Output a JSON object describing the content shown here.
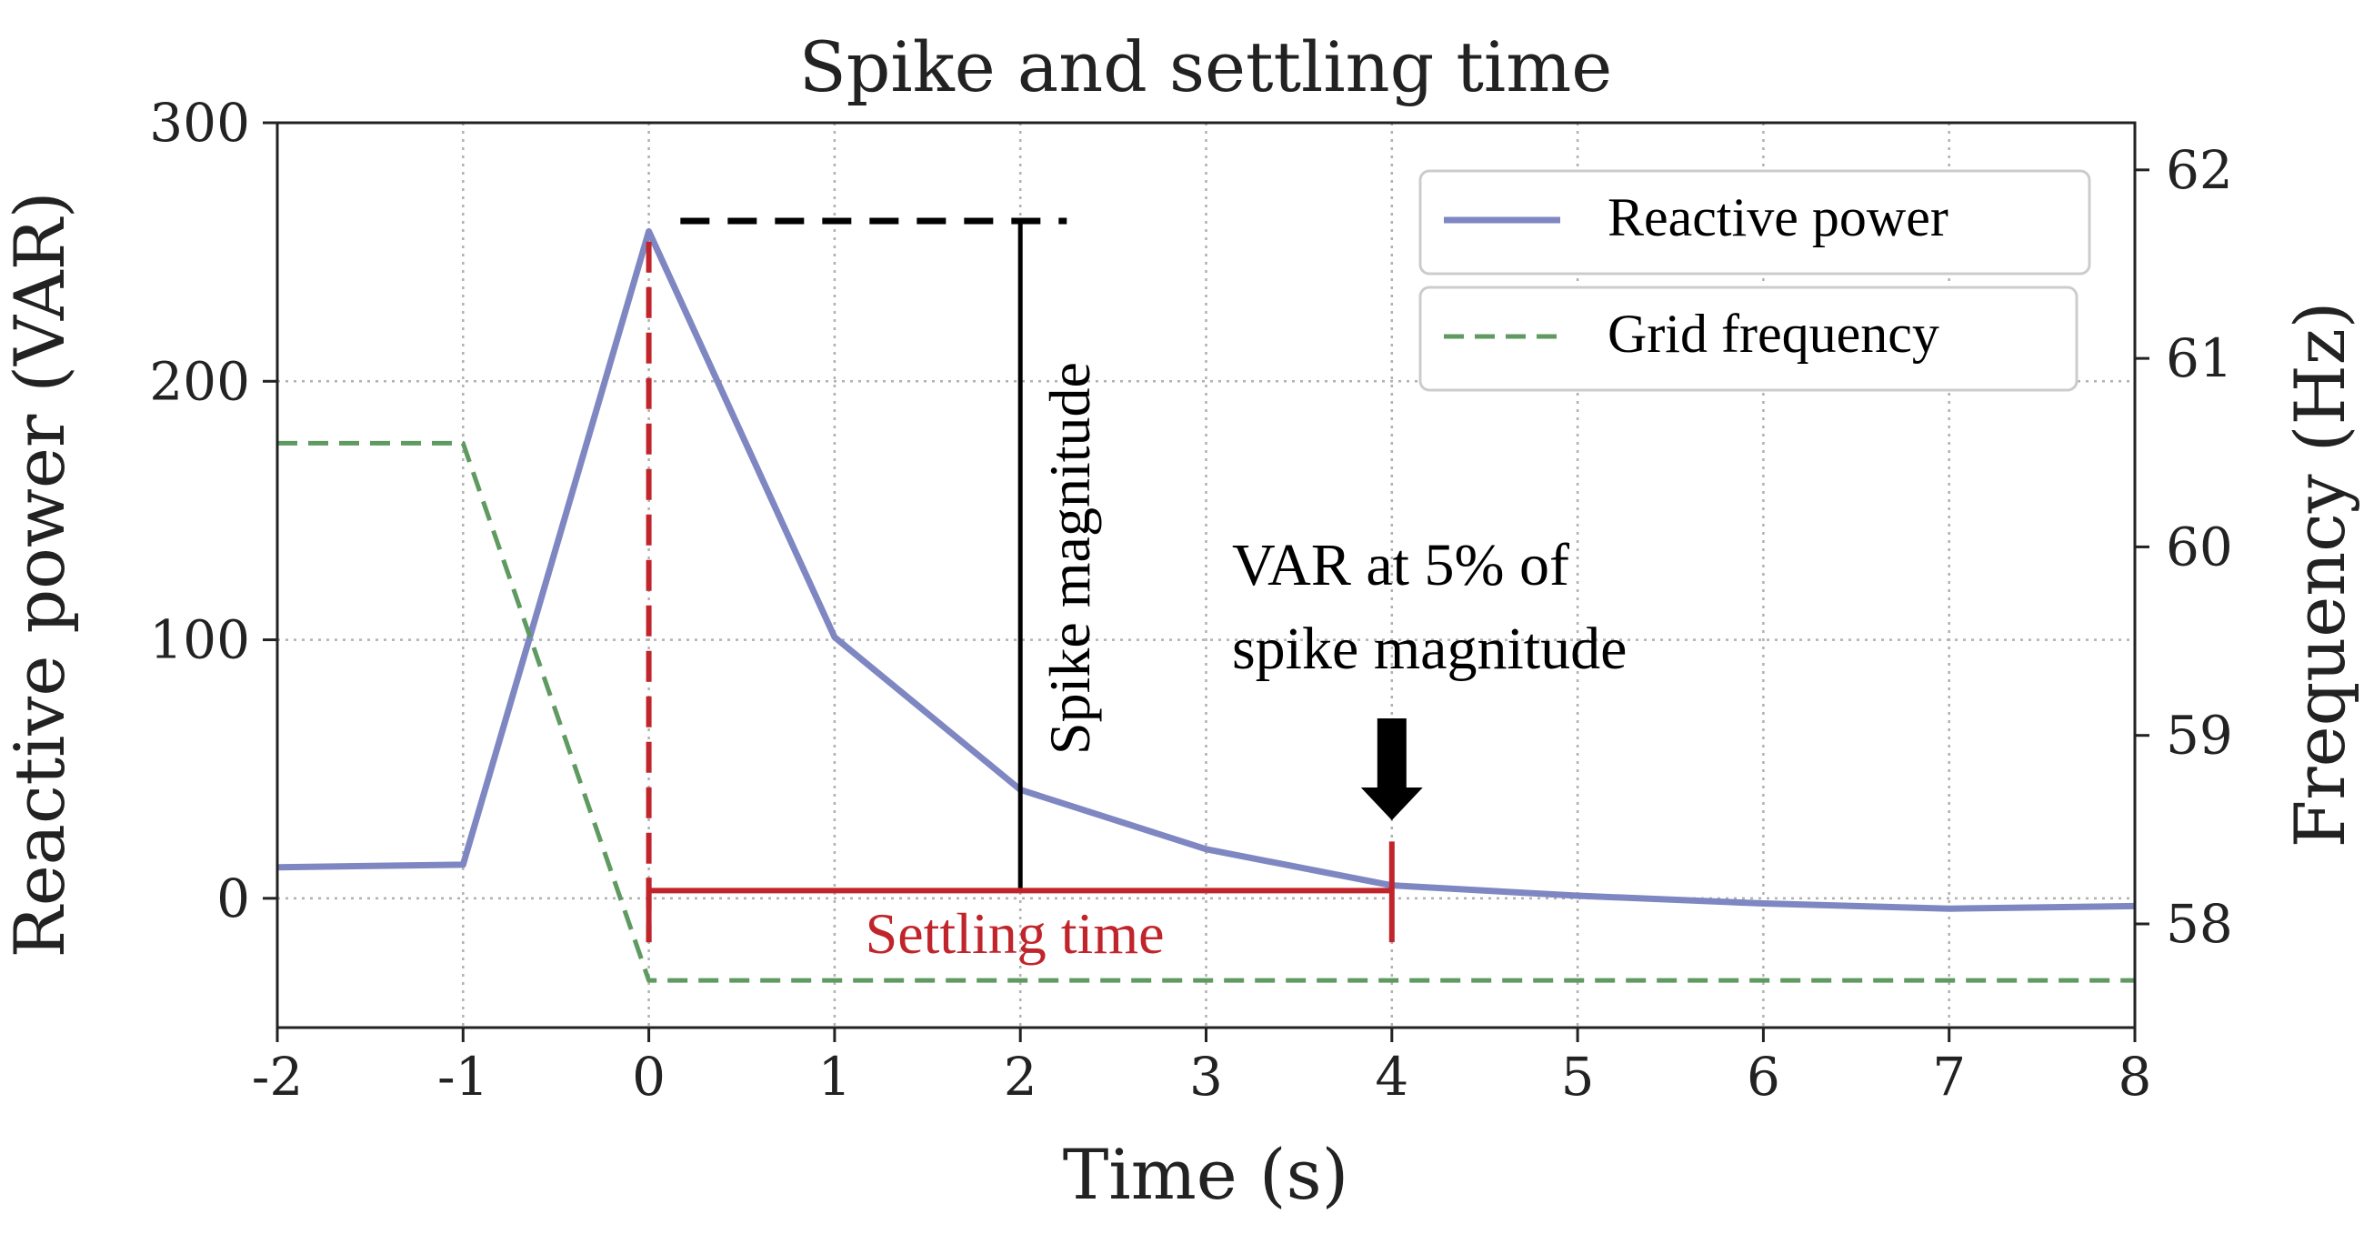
{
  "chart_data": {
    "type": "line",
    "title": "Spike and settling time",
    "xlabel": "Time (s)",
    "ylabel": "Reactive power (VAR)",
    "y2label": "Frequency (Hz)",
    "xlim": [
      -2,
      8
    ],
    "ylim": [
      -50,
      300
    ],
    "y2lim": [
      57.45,
      62.25
    ],
    "xticks": [
      -2,
      -1,
      0,
      1,
      2,
      3,
      4,
      5,
      6,
      7,
      8
    ],
    "xtick_labels": [
      "-2",
      "-1",
      "0",
      "1",
      "2",
      "3",
      "4",
      "5",
      "6",
      "7",
      "8"
    ],
    "yticks": [
      0,
      100,
      200,
      300
    ],
    "ytick_labels": [
      "0",
      "100",
      "200",
      "300"
    ],
    "y2ticks": [
      58,
      59,
      60,
      61,
      62
    ],
    "y2tick_labels": [
      "58",
      "59",
      "60",
      "61",
      "62"
    ],
    "grid": true,
    "legend_position": "top-right",
    "series": [
      {
        "name": "Reactive power",
        "axis": "left",
        "color": "#7f87c2",
        "style": "solid",
        "x": [
          -2,
          -1,
          0,
          1,
          2,
          3,
          4,
          5,
          6,
          7,
          8
        ],
        "y": [
          12,
          13,
          258,
          101,
          42,
          19,
          5,
          1,
          -2,
          -4,
          -3
        ]
      },
      {
        "name": "Grid frequency",
        "axis": "right",
        "color": "#5f9a60",
        "style": "dashed",
        "x": [
          -2,
          -1,
          0,
          1,
          2,
          3,
          4,
          5,
          6,
          7,
          8
        ],
        "y": [
          60.55,
          60.55,
          57.7,
          57.7,
          57.7,
          57.7,
          57.7,
          57.7,
          57.7,
          57.7,
          57.7
        ]
      }
    ],
    "annotations": {
      "spike_label": "Spike magnitude",
      "spike_level": 262,
      "spike_x": 2,
      "spike_dash_from": 0.17,
      "spike_dash_to": 2.25,
      "settling_label": "Settling time",
      "settling_start": 0,
      "settling_end": 4,
      "settling_level": 3,
      "var_label_line1": "VAR at 5% of",
      "var_label_line2": "spike magnitude",
      "arrow_x": 4,
      "settling_color": "#c0252b",
      "annotation_color": "#000000"
    }
  }
}
